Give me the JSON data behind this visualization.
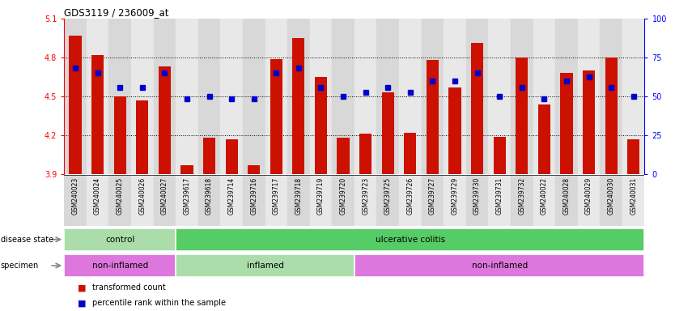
{
  "title": "GDS3119 / 236009_at",
  "samples": [
    "GSM240023",
    "GSM240024",
    "GSM240025",
    "GSM240026",
    "GSM240027",
    "GSM239617",
    "GSM239618",
    "GSM239714",
    "GSM239716",
    "GSM239717",
    "GSM239718",
    "GSM239719",
    "GSM239720",
    "GSM239723",
    "GSM239725",
    "GSM239726",
    "GSM239727",
    "GSM239729",
    "GSM239730",
    "GSM239731",
    "GSM239732",
    "GSM240022",
    "GSM240028",
    "GSM240029",
    "GSM240030",
    "GSM240031"
  ],
  "bar_values": [
    4.97,
    4.82,
    4.5,
    4.47,
    4.73,
    3.97,
    4.18,
    4.17,
    3.97,
    4.79,
    4.95,
    4.65,
    4.18,
    4.21,
    4.53,
    4.22,
    4.78,
    4.57,
    4.91,
    4.19,
    4.8,
    4.44,
    4.68,
    4.7,
    4.8,
    4.17
  ],
  "percentile_values": [
    4.72,
    4.68,
    4.57,
    4.57,
    4.68,
    4.48,
    4.5,
    4.48,
    4.48,
    4.68,
    4.72,
    4.57,
    4.5,
    4.53,
    4.57,
    4.53,
    4.62,
    4.62,
    4.68,
    4.5,
    4.57,
    4.48,
    4.62,
    4.65,
    4.57,
    4.5
  ],
  "y_min": 3.9,
  "y_max": 5.1,
  "y_ticks_left": [
    3.9,
    4.2,
    4.5,
    4.8,
    5.1
  ],
  "y_ticks_right": [
    0,
    25,
    50,
    75,
    100
  ],
  "bar_color": "#CC1100",
  "dot_color": "#0000CC",
  "ds_control_color": "#AADDAA",
  "ds_ulc_color": "#55CC66",
  "sp_noninflamed_color": "#DD77DD",
  "sp_inflamed_color": "#AADDAA",
  "legend_bar_label": "transformed count",
  "legend_dot_label": "percentile rank within the sample",
  "disease_state_label": "disease state",
  "specimen_label": "specimen",
  "col_bg_a": "#D8D8D8",
  "col_bg_b": "#E8E8E8"
}
